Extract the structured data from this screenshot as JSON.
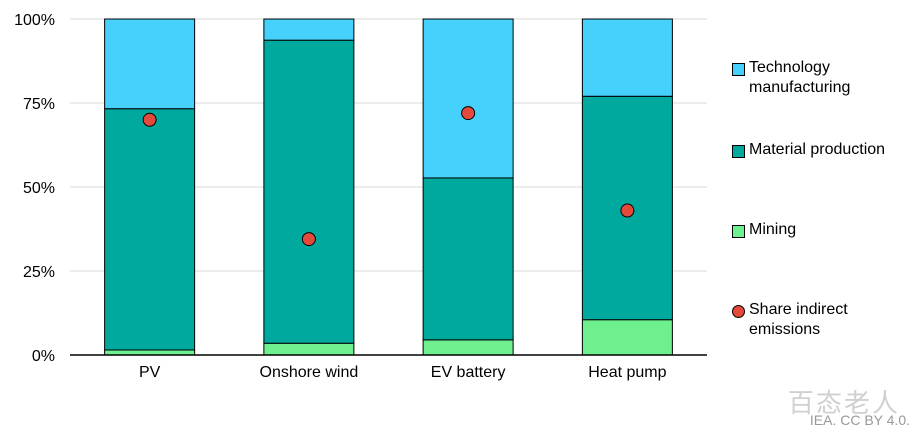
{
  "chart_data": {
    "type": "bar",
    "stacked": true,
    "categories": [
      "PV",
      "Onshore wind",
      "EV battery",
      "Heat pump"
    ],
    "series": [
      {
        "name": "Mining",
        "color": "#6ef08f",
        "values": [
          1.5,
          3.5,
          4.5,
          10.5
        ]
      },
      {
        "name": "Material production",
        "color": "#00a99d",
        "values": [
          71.8,
          90.2,
          48.2,
          66.5
        ]
      },
      {
        "name": "Technology\nmanufacturing",
        "color": "#45d1fb",
        "values": [
          26.7,
          6.3,
          47.3,
          23.0
        ]
      }
    ],
    "points": {
      "name": "Share indirect\nemissions",
      "color": "#e34a3b",
      "values": [
        70,
        34.5,
        72,
        43
      ]
    },
    "yticks": [
      "0%",
      "25%",
      "50%",
      "75%",
      "100%"
    ],
    "ylim": [
      0,
      100
    ],
    "legend_position": "right"
  },
  "source": "IEA. CC BY 4.0.",
  "watermark": "百态老人"
}
